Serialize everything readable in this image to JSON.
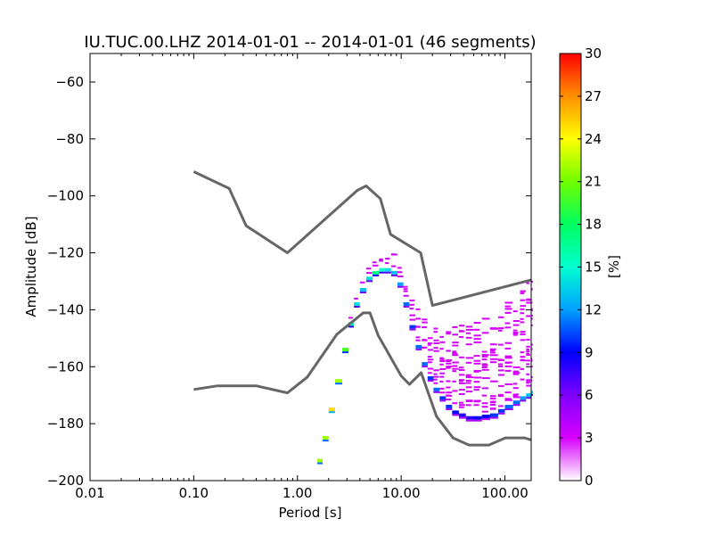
{
  "chart_data": {
    "type": "heatmap",
    "title": "IU.TUC.00.LHZ   2014-01-01 -- 2014-01-01  (46 segments)",
    "xlabel": "Period [s]",
    "ylabel": "Amplitude [dB]",
    "x_scale": "log",
    "xlim": [
      0.01,
      179.2
    ],
    "ylim": [
      -200,
      -50
    ],
    "x_ticks": [
      0.01,
      0.1,
      1.0,
      10.0,
      100.0
    ],
    "x_tick_labels": [
      "0.01",
      "0.10",
      "1.00",
      "10.00",
      "100.00"
    ],
    "y_ticks": [
      -200,
      -180,
      -160,
      -140,
      -120,
      -100,
      -80,
      -60
    ],
    "y_tick_labels": [
      "−200",
      "−180",
      "−160",
      "−140",
      "−120",
      "−100",
      "−80",
      "−60"
    ],
    "colorbar": {
      "label": "[%]",
      "range": [
        0,
        30
      ],
      "ticks": [
        0,
        3,
        6,
        9,
        12,
        15,
        18,
        21,
        24,
        27,
        30
      ],
      "tick_labels": [
        "0",
        "3",
        "6",
        "9",
        "12",
        "15",
        "18",
        "21",
        "24",
        "27",
        "30"
      ]
    },
    "noise_models": [
      {
        "name": "new-high-noise-model",
        "color": "#666666",
        "points": [
          [
            0.1,
            -91.5
          ],
          [
            0.22,
            -97.4
          ],
          [
            0.32,
            -110.5
          ],
          [
            0.8,
            -120
          ],
          [
            3.8,
            -98
          ],
          [
            4.6,
            -96.5
          ],
          [
            6.3,
            -101
          ],
          [
            7.9,
            -113.5
          ],
          [
            15.4,
            -120
          ],
          [
            20,
            -138.5
          ],
          [
            179.2,
            -129.5
          ]
        ]
      },
      {
        "name": "new-low-noise-model",
        "color": "#666666",
        "points": [
          [
            0.1,
            -168
          ],
          [
            0.17,
            -166.7
          ],
          [
            0.4,
            -166.7
          ],
          [
            0.8,
            -169.2
          ],
          [
            1.24,
            -163.7
          ],
          [
            2.4,
            -148.6
          ],
          [
            4.3,
            -141.1
          ],
          [
            5.0,
            -141.1
          ],
          [
            6.0,
            -149
          ],
          [
            10.0,
            -163.2
          ],
          [
            12.0,
            -166.2
          ],
          [
            15.6,
            -162.1
          ],
          [
            21.9,
            -177.5
          ],
          [
            31.6,
            -185
          ],
          [
            45,
            -187.5
          ],
          [
            70,
            -187.5
          ],
          [
            101,
            -185
          ],
          [
            154,
            -185
          ],
          [
            179.2,
            -185.7
          ]
        ]
      }
    ],
    "psd_ridge": {
      "period": [
        1.55,
        1.75,
        2.0,
        2.3,
        2.7,
        3.1,
        3.5,
        4.0,
        4.6,
        5.3,
        6.1,
        7.0,
        8.0,
        9.2,
        10.5,
        12.0,
        13.8,
        15.8,
        18.0,
        20.5,
        23.5,
        27.0,
        31.0,
        36.0,
        42.0,
        50.0,
        60.0,
        72.0,
        86.0,
        100.0,
        120.0,
        140.0,
        160.0,
        179.2
      ],
      "amplitude_db": [
        -193,
        -185,
        -175,
        -165,
        -154,
        -145,
        -138,
        -133,
        -129,
        -127,
        -126,
        -126,
        -127,
        -131,
        -138,
        -146,
        -153,
        -159,
        -164,
        -168,
        -171,
        -174,
        -176,
        -177,
        -178,
        -178,
        -177.5,
        -177,
        -175.5,
        -174,
        -172.5,
        -171,
        -170,
        -169
      ],
      "peak_percent": [
        22,
        22,
        25,
        22,
        20,
        16,
        14,
        13,
        14,
        17,
        15,
        14,
        13,
        12,
        11,
        10,
        11,
        11,
        10,
        11,
        10,
        10,
        9,
        8,
        8,
        9,
        9,
        10,
        10,
        11,
        11,
        12,
        13,
        14
      ]
    },
    "spread_above_db": [
      0,
      0,
      0,
      0,
      0,
      1,
      2,
      2,
      3,
      3,
      3,
      4,
      5,
      6,
      8,
      10,
      12,
      15,
      18,
      22,
      25,
      27,
      29,
      31,
      33,
      33,
      34,
      34,
      35,
      36,
      36,
      37,
      38,
      38
    ],
    "spread_below_db": [
      0,
      0,
      0,
      0,
      0,
      0,
      0,
      0,
      0,
      0,
      0,
      0,
      0,
      0,
      0,
      0,
      0,
      0,
      0,
      0,
      0,
      0,
      0,
      0,
      0,
      0,
      0,
      0,
      0,
      0,
      0,
      0,
      0,
      0
    ],
    "faint_percent": 3
  }
}
